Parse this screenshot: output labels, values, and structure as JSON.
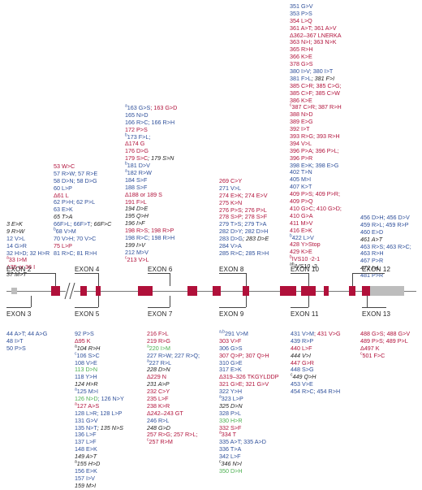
{
  "colors": {
    "blue": "#2e4f9a",
    "red": "#b1123b",
    "green": "#4caf50",
    "black": "#222222",
    "exon": "#b0103a",
    "utr": "#bdbdbd"
  },
  "exons_top": [
    "EXON 2",
    "EXON 4",
    "EXON 6",
    "EXON 8",
    "EXON 10",
    "EXON 12"
  ],
  "exons_bottom": [
    "EXON 3",
    "EXON 5",
    "EXON 7",
    "EXON 9",
    "EXON 11",
    "EXON 13"
  ],
  "top_col1": [
    [
      {
        "t": "3 E>K",
        "c": "black",
        "i": true
      }
    ],
    [
      {
        "t": "9 R>W",
        "c": "black",
        "i": true
      }
    ],
    [
      {
        "t": "12 V>L",
        "c": "blue"
      }
    ],
    [
      {
        "t": "14 G>R",
        "c": "blue"
      }
    ],
    [
      {
        "t": "32 H>D; 32 H>R",
        "c": "blue"
      }
    ],
    [
      {
        "t": "33 I>M",
        "c": "red",
        "s": "a"
      }
    ],
    [
      {
        "t": "Δ35 or 36 I",
        "c": "red"
      }
    ],
    [
      {
        "t": "37 M>T",
        "c": "black",
        "i": true
      }
    ]
  ],
  "top_col2": [
    [
      {
        "t": "53 W>C",
        "c": "red"
      }
    ],
    [
      {
        "t": "57 R>W; 57 R>E",
        "c": "blue"
      }
    ],
    [
      {
        "t": "58 D>N; 58 D>G",
        "c": "blue"
      }
    ],
    [
      {
        "t": "60 L>P",
        "c": "blue"
      }
    ],
    [
      {
        "t": "Δ61 L",
        "c": "red"
      }
    ],
    [
      {
        "t": "62 P>H; 62 P>L",
        "c": "blue"
      }
    ],
    [
      {
        "t": "63 E>K",
        "c": "blue"
      }
    ],
    [
      {
        "t": "65 T>A",
        "c": "black",
        "i": true
      }
    ],
    [
      {
        "t": "66F>L; 66F>T",
        "c": "blue"
      },
      {
        "t": "; 66F>C",
        "c": "black",
        "i": true
      }
    ],
    [
      {
        "t": "68 V>M",
        "c": "blue",
        "s": "b"
      }
    ],
    [
      {
        "t": "70 V>H; 70 V>C",
        "c": "blue"
      }
    ],
    [
      {
        "t": "75 L>P",
        "c": "red"
      }
    ],
    [
      {
        "t": "81 R>C; 81 R>H",
        "c": "blue"
      }
    ]
  ],
  "top_col3": [
    [
      {
        "t": "163 G>S",
        "c": "blue",
        "s": "a"
      },
      {
        "t": "; 163 G>D",
        "c": "red"
      }
    ],
    [
      {
        "t": "165 N>D",
        "c": "blue"
      }
    ],
    [
      {
        "t": "166 R>C; 166 R>H",
        "c": "blue"
      }
    ],
    [
      {
        "t": "172 P>S",
        "c": "red"
      }
    ],
    [
      {
        "t": "173 F>L;",
        "c": "blue",
        "s": "b"
      }
    ],
    [
      {
        "t": "Δ174 G",
        "c": "red"
      }
    ],
    [
      {
        "t": "176 D>G",
        "c": "red"
      }
    ],
    [
      {
        "t": "179 S>C",
        "c": "red"
      },
      {
        "t": "; 179 S>N",
        "c": "black",
        "i": true
      }
    ],
    [
      {
        "t": "181 D>V",
        "c": "blue",
        "s": "b"
      }
    ],
    [
      {
        "t": "182 R>W",
        "c": "blue",
        "s": "a"
      }
    ],
    [
      {
        "t": "184 S>F",
        "c": "blue"
      }
    ],
    [
      {
        "t": "188 S>F",
        "c": "blue"
      }
    ],
    [
      {
        "t": "Δ188 or 189 S",
        "c": "red"
      }
    ],
    [
      {
        "t": "191 F>L",
        "c": "red"
      }
    ],
    [
      {
        "t": "194 D>E",
        "c": "black",
        "i": true
      }
    ],
    [
      {
        "t": "195 Q>H",
        "c": "black",
        "i": true
      }
    ],
    [
      {
        "t": "196 I>F",
        "c": "black",
        "i": true
      }
    ],
    [
      {
        "t": "198 R>S",
        "c": "red"
      },
      {
        "t": "; 198 R>P",
        "c": "red"
      }
    ],
    [
      {
        "t": "198 R>C; 198 R>H",
        "c": "blue"
      }
    ],
    [
      {
        "t": "199 I>V",
        "c": "black",
        "i": true
      }
    ],
    [
      {
        "t": "212 M>V",
        "c": "blue"
      }
    ],
    [
      {
        "t": "213 V>L",
        "c": "red",
        "s": "c"
      }
    ]
  ],
  "top_col4": [
    [
      {
        "t": "269 C>Y",
        "c": "red"
      }
    ],
    [
      {
        "t": "271 V>L",
        "c": "blue"
      }
    ],
    [
      {
        "t": "274 E>K; 274 E>V",
        "c": "red"
      }
    ],
    [
      {
        "t": "275 K>N",
        "c": "red"
      }
    ],
    [
      {
        "t": "276 P>S; 276 P>L",
        "c": "red"
      }
    ],
    [
      {
        "t": "278 S>P; 278 S>F",
        "c": "red"
      }
    ],
    [
      {
        "t": "279 T>S; 279 T>A",
        "c": "blue"
      }
    ],
    [
      {
        "t": "282 D>Y; 282 D>H",
        "c": "blue"
      }
    ],
    [
      {
        "t": "283 D>G",
        "c": "blue"
      },
      {
        "t": "; 283 D>E",
        "c": "black",
        "i": true
      }
    ],
    [
      {
        "t": "284 V>A",
        "c": "blue"
      }
    ],
    [
      {
        "t": "285 R>C; 285 R>H",
        "c": "blue"
      }
    ]
  ],
  "top_col5": [
    [
      {
        "t": "351 G>V",
        "c": "blue"
      }
    ],
    [
      {
        "t": "353 P>S",
        "c": "blue"
      }
    ],
    [
      {
        "t": "354 L>Q",
        "c": "red"
      }
    ],
    [
      {
        "t": "361 A>T; 361 A>V",
        "c": "red"
      }
    ],
    [
      {
        "t": "Δ362–367 LNERKA",
        "c": "red"
      }
    ],
    [
      {
        "t": "363 N>I; 363 N>K",
        "c": "red"
      }
    ],
    [
      {
        "t": "365 R>H",
        "c": "red"
      }
    ],
    [
      {
        "t": "366 K>E",
        "c": "red"
      }
    ],
    [
      {
        "t": "378 G>S",
        "c": "red"
      }
    ],
    [
      {
        "t": "380 I>V; 380 I>T",
        "c": "blue"
      }
    ],
    [
      {
        "t": "381 F>L",
        "c": "blue"
      },
      {
        "t": "; 381 F>I",
        "c": "black",
        "i": true
      }
    ],
    [
      {
        "t": "385 C>R; 385 C>G;",
        "c": "red"
      }
    ],
    [
      {
        "t": "385 C>F; 385 C>W",
        "c": "red"
      }
    ],
    [
      {
        "t": "386 K>E",
        "c": "red"
      }
    ],
    [
      {
        "t": "387 C>R; 387 R>H",
        "c": "red",
        "s": "c"
      }
    ],
    [
      {
        "t": "388 N>D",
        "c": "red"
      }
    ],
    [
      {
        "t": "389 E>G",
        "c": "red"
      }
    ],
    [
      {
        "t": "392 I>T",
        "c": "red"
      }
    ],
    [
      {
        "t": "393 R>G; 393 R>H",
        "c": "red"
      }
    ],
    [
      {
        "t": "394 V>L",
        "c": "red"
      }
    ],
    [
      {
        "t": "396 P>A; 396 P>L;",
        "c": "red"
      }
    ],
    [
      {
        "t": "396 P>R",
        "c": "red"
      }
    ],
    [
      {
        "t": "398 E>K",
        "c": "blue"
      },
      {
        "t": "; 398 E>G",
        "c": "blue"
      }
    ],
    [
      {
        "t": "402 T>N",
        "c": "blue"
      }
    ],
    [
      {
        "t": "405 M>I",
        "c": "blue"
      }
    ],
    [
      {
        "t": "407 K>T",
        "c": "blue"
      }
    ],
    [
      {
        "t": "409 P>S",
        "c": "red"
      },
      {
        "t": "; 409 P>R;",
        "c": "red"
      }
    ],
    [
      {
        "t": "409 P>Q",
        "c": "red"
      }
    ],
    [
      {
        "t": "410 G>C; 410 G>D;",
        "c": "red"
      }
    ],
    [
      {
        "t": "410 G>A",
        "c": "red"
      }
    ],
    [
      {
        "t": "411 M>V",
        "c": "red"
      }
    ],
    [
      {
        "t": "416 E>K",
        "c": "red"
      }
    ],
    [
      {
        "t": "422 L>V",
        "c": "blue",
        "s": "b"
      }
    ],
    [
      {
        "t": "428 Y>Stop",
        "c": "red"
      }
    ],
    [
      {
        "t": "429 K>E",
        "c": "red"
      }
    ],
    [
      {
        "t": "IVS10 -2-1",
        "c": "red",
        "s": "b"
      }
    ],
    [
      {
        "t": "IVS10 -2",
        "c": "black",
        "i": true,
        "s": "ab"
      }
    ]
  ],
  "top_col6": [
    [
      {
        "t": "456 D>H; 456 D>V",
        "c": "blue"
      }
    ],
    [
      {
        "t": "459 R>L; 459 R>P",
        "c": "blue"
      }
    ],
    [
      {
        "t": "460 E>D",
        "c": "blue"
      }
    ],
    [
      {
        "t": "461 A>T",
        "c": "black",
        "i": true
      }
    ],
    [
      {
        "t": "463 R>S; 463 R>C;",
        "c": "blue"
      }
    ],
    [
      {
        "t": "463 R>H",
        "c": "blue"
      }
    ],
    [
      {
        "t": "467 P>R",
        "c": "blue"
      }
    ],
    [
      {
        "t": "472 I>L",
        "c": "black",
        "i": true
      }
    ],
    [
      {
        "t": "481 P>R",
        "c": "blue"
      }
    ]
  ],
  "bot_col1": [
    [
      {
        "t": "44 A>T; 44 A>G",
        "c": "blue"
      }
    ],
    [
      {
        "t": "48 I>T",
        "c": "blue"
      }
    ],
    [
      {
        "t": "50 P>S",
        "c": "blue"
      }
    ]
  ],
  "bot_col2": [
    [
      {
        "t": "92 P>S",
        "c": "blue"
      }
    ],
    [
      {
        "t": "Δ95 K",
        "c": "red"
      }
    ],
    [
      {
        "t": "104 R>H",
        "c": "black",
        "i": true,
        "s": "a"
      }
    ],
    [
      {
        "t": "106 S>C",
        "c": "blue",
        "s": "c"
      }
    ],
    [
      {
        "t": "108 V>E",
        "c": "blue"
      }
    ],
    [
      {
        "t": "113 D>N",
        "c": "green"
      }
    ],
    [
      {
        "t": "118 Y>H",
        "c": "blue"
      }
    ],
    [
      {
        "t": "124 H>R",
        "c": "black",
        "i": true
      }
    ],
    [
      {
        "t": "125 M>I",
        "c": "blue",
        "s": "a"
      }
    ],
    [
      {
        "t": "126 N>D",
        "c": "green"
      },
      {
        "t": "; 126 N>Y",
        "c": "blue"
      }
    ],
    [
      {
        "t": "127 A>S",
        "c": "red",
        "s": "a"
      }
    ],
    [
      {
        "t": "128 L>R; 128 L>P",
        "c": "blue"
      }
    ],
    [
      {
        "t": "131 G>V",
        "c": "blue"
      }
    ],
    [
      {
        "t": "135 N>T",
        "c": "blue"
      },
      {
        "t": "; 135 N>S",
        "c": "black",
        "i": true
      }
    ],
    [
      {
        "t": "136 L>F",
        "c": "blue"
      }
    ],
    [
      {
        "t": "137 L>F",
        "c": "blue"
      }
    ],
    [
      {
        "t": "148 E>K",
        "c": "blue"
      }
    ],
    [
      {
        "t": "149 A>T",
        "c": "black",
        "i": true
      }
    ],
    [
      {
        "t": "155 H>D",
        "c": "black",
        "i": true,
        "s": "a"
      }
    ],
    [
      {
        "t": "156 E>K",
        "c": "blue"
      }
    ],
    [
      {
        "t": "157 I>V",
        "c": "blue"
      }
    ],
    [
      {
        "t": "159 M>I",
        "c": "black",
        "i": true
      }
    ]
  ],
  "bot_col3": [
    [
      {
        "t": "216 F>L",
        "c": "red"
      }
    ],
    [
      {
        "t": "219 R>G",
        "c": "red"
      }
    ],
    [
      {
        "t": "220 I>M",
        "c": "green",
        "s": "a"
      }
    ],
    [
      {
        "t": "227 R>W; 227 R>Q;",
        "c": "blue"
      }
    ],
    [
      {
        "t": "227 R>L",
        "c": "blue",
        "s": "a"
      }
    ],
    [
      {
        "t": "228 D>N",
        "c": "black",
        "i": true
      }
    ],
    [
      {
        "t": "Δ229 N",
        "c": "red"
      }
    ],
    [
      {
        "t": "231 A>P",
        "c": "black",
        "i": true
      }
    ],
    [
      {
        "t": "232 C>Y",
        "c": "red"
      }
    ],
    [
      {
        "t": "235 L>F",
        "c": "red"
      }
    ],
    [
      {
        "t": "238 K>R",
        "c": "red"
      }
    ],
    [
      {
        "t": "Δ242–243 GT",
        "c": "red"
      }
    ],
    [
      {
        "t": "246 R>L",
        "c": "blue"
      }
    ],
    [
      {
        "t": "248 G>D",
        "c": "black",
        "i": true
      }
    ],
    [
      {
        "t": "257 R>G; 257 R>L;",
        "c": "red"
      }
    ],
    [
      {
        "t": "257 R>M",
        "c": "red",
        "s": "c"
      }
    ]
  ],
  "bot_col4": [
    [
      {
        "t": "291 V>M",
        "c": "blue",
        "s": "a,b"
      }
    ],
    [
      {
        "t": "303 V>F",
        "c": "red"
      }
    ],
    [
      {
        "t": "306 G>S",
        "c": "blue"
      }
    ],
    [
      {
        "t": "307 Q>P",
        "c": "red"
      },
      {
        "t": "; 307 Q>H",
        "c": "red"
      }
    ],
    [
      {
        "t": "310 G>E",
        "c": "blue"
      }
    ],
    [
      {
        "t": "317 E>K",
        "c": "blue"
      }
    ],
    [
      {
        "t": "Δ319–326 TKGYLDDP",
        "c": "red"
      }
    ],
    [
      {
        "t": "321 G>E; 321 G>V",
        "c": "red"
      }
    ],
    [
      {
        "t": "322 Y>H",
        "c": "blue"
      }
    ],
    [
      {
        "t": "323 L>P",
        "c": "blue",
        "s": "a"
      }
    ],
    [
      {
        "t": "325 D>N",
        "c": "black",
        "i": true
      }
    ],
    [
      {
        "t": "328 P>L",
        "c": "blue"
      }
    ],
    [
      {
        "t": "330 H>R",
        "c": "green"
      }
    ],
    [
      {
        "t": "332 S>F",
        "c": "red"
      }
    ],
    [
      {
        "t": "334 T",
        "c": "red",
        "s": "a"
      }
    ],
    [
      {
        "t": "335 A>T; 335 A>D",
        "c": "blue"
      }
    ],
    [
      {
        "t": "336 T>A",
        "c": "blue"
      }
    ],
    [
      {
        "t": "342 L>F",
        "c": "blue"
      }
    ],
    [
      {
        "t": "346 N>I",
        "c": "black",
        "i": true,
        "s": "c"
      }
    ],
    [
      {
        "t": "350 D>H",
        "c": "green"
      }
    ]
  ],
  "bot_col5": [
    [
      {
        "t": "431 V>M",
        "c": "blue"
      },
      {
        "t": "; 431 V>G",
        "c": "red"
      }
    ],
    [
      {
        "t": "439 R>P",
        "c": "blue"
      }
    ],
    [
      {
        "t": "440 L>F",
        "c": "red"
      }
    ],
    [
      {
        "t": "444 V>I",
        "c": "black",
        "i": true
      }
    ],
    [
      {
        "t": "447 G>R",
        "c": "red"
      }
    ],
    [
      {
        "t": "448 S>G",
        "c": "blue"
      }
    ],
    [
      {
        "t": "449 Q>H",
        "c": "black",
        "i": true,
        "s": "c"
      }
    ],
    [
      {
        "t": "453 V>E",
        "c": "blue"
      }
    ],
    [
      {
        "t": "454 R>C; 454 R>H",
        "c": "blue"
      }
    ]
  ],
  "bot_col6": [
    [
      {
        "t": "488 G>S; 488 G>V",
        "c": "red"
      }
    ],
    [
      {
        "t": "489 P>S; 489 P>L",
        "c": "red"
      }
    ],
    [
      {
        "t": "Δ497 K",
        "c": "red"
      }
    ],
    [
      {
        "t": "501 F>C",
        "c": "red",
        "s": "c"
      }
    ]
  ]
}
